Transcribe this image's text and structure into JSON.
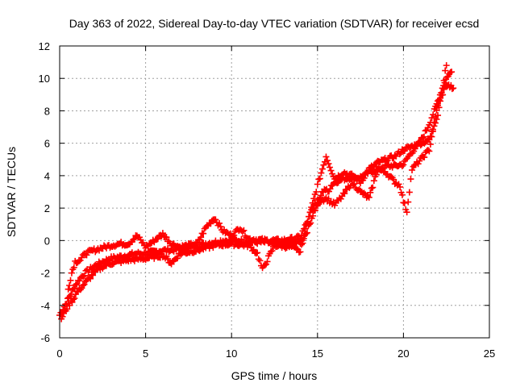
{
  "chart_data": {
    "type": "scatter",
    "title": "Day 363 of 2022, Sidereal Day-to-day VTEC variation (SDTVAR) for receiver ecsd",
    "xlabel": "GPS time / hours",
    "ylabel": "SDTVAR / TECUs",
    "xlim": [
      0,
      25
    ],
    "ylim": [
      -6,
      12
    ],
    "xticks": [
      0,
      5,
      10,
      15,
      20,
      25
    ],
    "yticks": [
      -6,
      -4,
      -2,
      0,
      2,
      4,
      6,
      8,
      10,
      12
    ],
    "xtick_labels": [
      "0",
      "5",
      "10",
      "15",
      "20",
      "25"
    ],
    "ytick_labels": [
      "-6",
      "-4",
      "-2",
      "0",
      "2",
      "4",
      "6",
      "8",
      "10",
      "12"
    ],
    "grid": true,
    "marker": "plus",
    "color": "#ff0000",
    "series": [
      {
        "name": "track-main",
        "x": [
          0,
          0.2,
          0.4,
          0.6,
          0.8,
          1.0,
          1.3,
          1.6,
          2.0,
          2.5,
          3.0,
          3.5,
          4.0,
          4.5,
          5.0,
          5.5,
          6.0,
          6.5,
          7.0,
          7.5,
          8.0,
          8.5,
          9.0,
          9.5,
          10.0,
          10.5,
          11.0,
          11.5,
          12.0,
          12.5,
          13.0,
          13.5,
          14.0,
          14.2,
          14.4,
          14.6,
          14.8,
          15.0,
          15.2,
          15.4,
          15.6,
          15.8,
          16.0,
          16.5,
          17.0,
          17.5,
          18.0,
          18.5,
          19.0,
          19.5,
          20.0,
          20.3,
          20.6,
          20.9,
          21.2,
          21.5,
          21.8,
          22.0,
          22.2,
          22.4,
          22.6,
          22.8
        ],
        "y": [
          -4.6,
          -4.2,
          -3.8,
          -3.4,
          -3.0,
          -2.6,
          -2.2,
          -1.9,
          -1.6,
          -1.3,
          -1.1,
          -1.0,
          -0.9,
          -0.8,
          -0.8,
          -0.7,
          -0.6,
          -0.6,
          -0.5,
          -0.4,
          -0.3,
          -0.2,
          -0.1,
          0.0,
          0.0,
          0.0,
          -0.1,
          -0.1,
          -0.1,
          -0.2,
          -0.2,
          -0.1,
          -0.1,
          0.2,
          0.6,
          1.2,
          1.8,
          2.2,
          2.8,
          3.2,
          3.0,
          3.4,
          3.6,
          3.8,
          3.9,
          3.9,
          4.2,
          4.4,
          4.6,
          4.6,
          4.7,
          5.2,
          5.6,
          6.0,
          6.5,
          7.2,
          8.0,
          8.6,
          9.2,
          9.8,
          10.2,
          10.4
        ]
      },
      {
        "name": "track-upper",
        "x": [
          0.5,
          0.7,
          0.9,
          1.2,
          1.5,
          2.0,
          2.3,
          3.0,
          3.5,
          4.0,
          4.5,
          5.0,
          5.5,
          6.0,
          6.5,
          7.0,
          8.0,
          8.5,
          9.0,
          9.5,
          10.0,
          10.5,
          11.0,
          12.0,
          13.0,
          14.0,
          14.5,
          15.0,
          15.5,
          16.0,
          16.5,
          17.0,
          17.5,
          18.0,
          18.5,
          19.0,
          19.5,
          20.0,
          20.5,
          21.0,
          21.5,
          22.0,
          22.5
        ],
        "y": [
          -3.0,
          -2.0,
          -1.3,
          -1.2,
          -0.8,
          -0.6,
          -0.5,
          -0.3,
          -0.2,
          -0.2,
          0.3,
          -0.4,
          0.0,
          0.4,
          -0.2,
          -0.4,
          -0.2,
          0.8,
          1.4,
          0.6,
          0.3,
          0.8,
          0.1,
          0.0,
          0.0,
          0.2,
          1.4,
          3.4,
          5.2,
          3.8,
          4.2,
          4.0,
          3.6,
          4.4,
          4.8,
          5.0,
          5.2,
          5.6,
          5.8,
          6.0,
          6.2,
          7.8,
          10.8
        ]
      },
      {
        "name": "track-lower",
        "x": [
          0.1,
          0.3,
          0.5,
          0.8,
          1.0,
          1.5,
          2.0,
          2.5,
          3.0,
          4.0,
          5.0,
          6.0,
          6.5,
          7.0,
          8.0,
          9.0,
          10.0,
          11.0,
          11.5,
          11.8,
          12.5,
          13.5,
          14.0,
          14.5,
          15.0,
          15.5,
          16.0,
          16.5,
          17.0,
          17.5,
          18.0,
          18.5,
          19.0,
          19.5,
          19.8,
          20.0,
          20.2,
          20.5,
          21.0,
          21.5,
          22.0,
          22.5,
          22.9
        ],
        "y": [
          -4.8,
          -4.4,
          -4.0,
          -3.6,
          -3.2,
          -2.6,
          -2.0,
          -1.6,
          -1.4,
          -1.2,
          -1.1,
          -0.9,
          -1.4,
          -0.8,
          -0.6,
          -0.3,
          -0.2,
          -0.3,
          -0.8,
          -1.8,
          -0.3,
          -0.4,
          -0.7,
          1.6,
          2.4,
          2.6,
          2.2,
          2.8,
          3.6,
          3.0,
          2.6,
          4.4,
          4.2,
          3.6,
          3.4,
          2.4,
          1.8,
          4.4,
          5.0,
          5.6,
          8.4,
          9.6,
          9.4
        ]
      }
    ]
  }
}
